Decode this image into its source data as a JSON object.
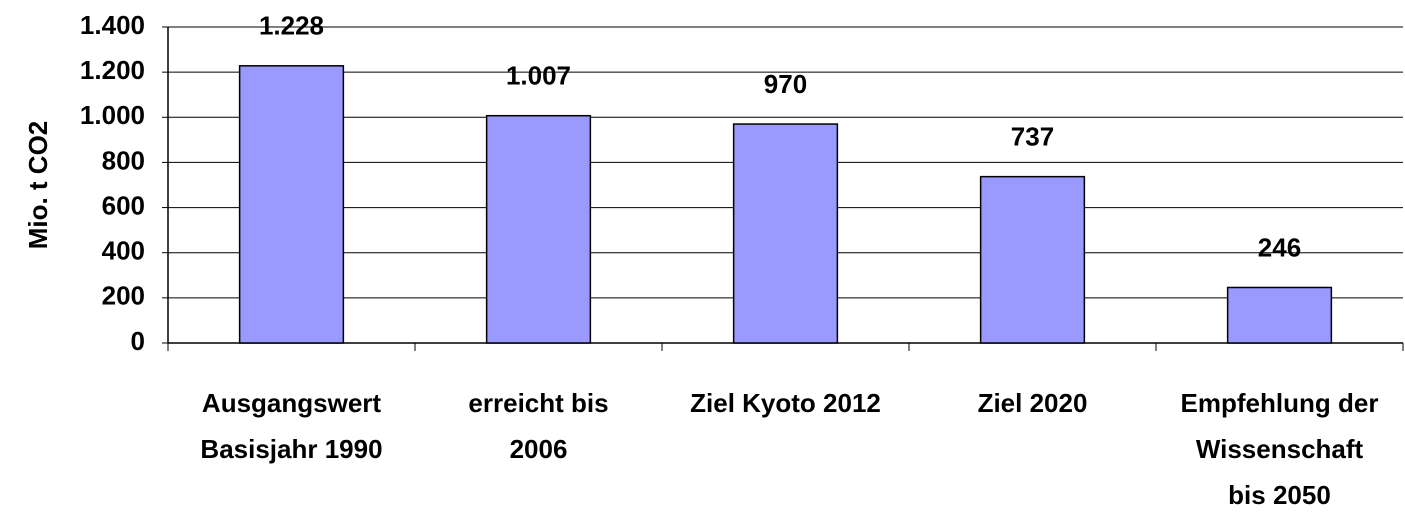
{
  "chart_data": {
    "type": "bar",
    "y_axis_label": "Mio. t CO2",
    "categories": [
      [
        "Ausgangswert",
        "Basisjahr 1990"
      ],
      [
        "erreicht bis",
        "2006"
      ],
      [
        "Ziel Kyoto 2012"
      ],
      [
        "Ziel  2020"
      ],
      [
        "Empfehlung der",
        "Wissenschaft",
        "bis 2050"
      ]
    ],
    "values": [
      1228,
      1007,
      970,
      737,
      246
    ],
    "value_labels": [
      "1.228",
      "1.007",
      "970",
      "737",
      "246"
    ],
    "color": "#9999ff",
    "ylim": [
      0,
      1400
    ],
    "yticks": [
      0,
      200,
      400,
      600,
      800,
      {
        "value": 1000,
        "label": "1.000"
      },
      {
        "value": 1200,
        "label": "1.200"
      },
      {
        "value": 1400,
        "label": "1.400"
      }
    ],
    "grid": true
  }
}
